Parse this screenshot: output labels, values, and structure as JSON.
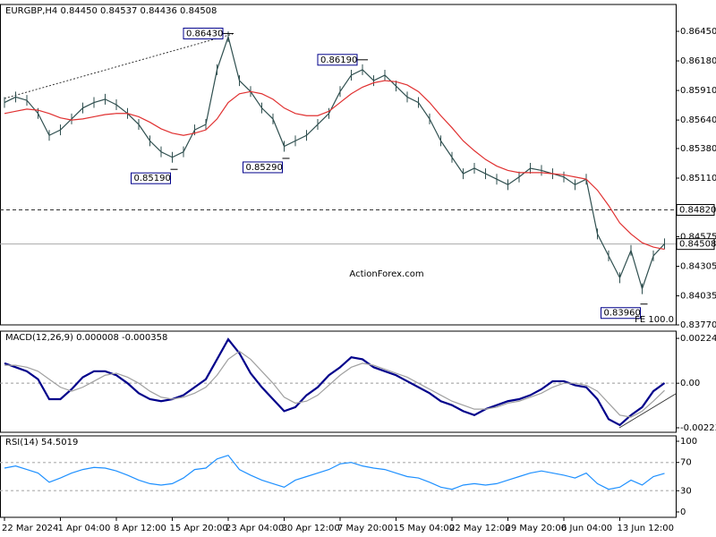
{
  "chart_data": [
    {
      "type": "line",
      "title": "EURGBP,H4  0.84450 0.84537 0.84436 0.84508",
      "watermark": "ActionForex.com",
      "categories": [
        "22 Mar 2024",
        null,
        null,
        null,
        null,
        "1 Apr 04:00",
        null,
        null,
        null,
        null,
        "8 Apr 12:00",
        null,
        null,
        null,
        null,
        "15 Apr 20:00",
        null,
        null,
        null,
        null,
        "23 Apr 04:00",
        null,
        null,
        null,
        null,
        "30 Apr 12:00",
        null,
        null,
        null,
        null,
        "7 May 20:00",
        null,
        null,
        null,
        null,
        "15 May 04:00",
        null,
        null,
        null,
        null,
        "22 May 12:00",
        null,
        null,
        null,
        null,
        "29 May 20:00",
        null,
        null,
        null,
        null,
        "6 Jun 04:00",
        null,
        null,
        null,
        null,
        "13 Jun 12:00",
        null,
        null,
        null,
        null
      ],
      "series": [
        {
          "name": "EURGBP",
          "color": "#2f4f4f",
          "values": [
            0.858,
            0.8585,
            0.8582,
            0.857,
            0.855,
            0.8555,
            0.8565,
            0.8575,
            0.858,
            0.8583,
            0.8578,
            0.857,
            0.856,
            0.8545,
            0.8535,
            0.853,
            0.8535,
            0.8555,
            0.856,
            0.861,
            0.864,
            0.86,
            0.859,
            0.8575,
            0.8565,
            0.854,
            0.8545,
            0.855,
            0.856,
            0.857,
            0.859,
            0.8605,
            0.861,
            0.86,
            0.8605,
            0.8595,
            0.8585,
            0.858,
            0.8565,
            0.8545,
            0.853,
            0.8515,
            0.852,
            0.8515,
            0.851,
            0.8505,
            0.8512,
            0.852,
            0.8518,
            0.8515,
            0.8512,
            0.8505,
            0.851,
            0.846,
            0.844,
            0.842,
            0.8445,
            0.841,
            0.844,
            0.8451
          ]
        },
        {
          "name": "MA",
          "color": "#e03030",
          "values": [
            0.857,
            0.8572,
            0.8574,
            0.8573,
            0.857,
            0.8566,
            0.8564,
            0.8565,
            0.8567,
            0.8569,
            0.857,
            0.857,
            0.8567,
            0.8562,
            0.8556,
            0.8552,
            0.855,
            0.8552,
            0.8555,
            0.8565,
            0.858,
            0.8588,
            0.859,
            0.8588,
            0.8583,
            0.8575,
            0.857,
            0.8568,
            0.8568,
            0.8572,
            0.858,
            0.8588,
            0.8594,
            0.8598,
            0.86,
            0.8599,
            0.8596,
            0.859,
            0.858,
            0.8568,
            0.8557,
            0.8545,
            0.8536,
            0.8528,
            0.8522,
            0.8518,
            0.8516,
            0.8516,
            0.8516,
            0.8515,
            0.8514,
            0.8512,
            0.851,
            0.85,
            0.8486,
            0.847,
            0.846,
            0.8452,
            0.8448,
            0.8446
          ]
        }
      ],
      "ylim": [
        0.8377,
        0.86695
      ],
      "yticks": [
        {
          "value": 0.8645,
          "label": "0.86450"
        },
        {
          "value": 0.8618,
          "label": "0.86180"
        },
        {
          "value": 0.8591,
          "label": "0.85910"
        },
        {
          "value": 0.8564,
          "label": "0.85640"
        },
        {
          "value": 0.8538,
          "label": "0.85380"
        },
        {
          "value": 0.8511,
          "label": "0.85110"
        },
        {
          "value": 0.84575,
          "label": "0.84575"
        },
        {
          "value": 0.84305,
          "label": "0.84305"
        },
        {
          "value": 0.84035,
          "label": "0.84035"
        },
        {
          "value": 0.8377,
          "label": "0.83770"
        }
      ],
      "levels": [
        {
          "value": 0.8482,
          "label": "0.84820",
          "style": "dashed"
        },
        {
          "value": 0.84508,
          "label": "0.84508",
          "style": "solid"
        }
      ],
      "annotations": [
        {
          "value": 0.8643,
          "label": "0.86430",
          "index": 20
        },
        {
          "value": 0.8619,
          "label": "0.86190",
          "index": 32
        },
        {
          "value": 0.8519,
          "label": "0.85190",
          "index": 15
        },
        {
          "value": 0.8529,
          "label": "0.85290",
          "index": 25
        },
        {
          "value": 0.8396,
          "label": "0.83960",
          "index": 57
        }
      ],
      "note": "FE 100.0"
    },
    {
      "type": "line",
      "title": "MACD(12,26,9) 0.000008 -0.000358",
      "series": [
        {
          "name": "MACD",
          "color": "#00008b",
          "values": [
            0.001,
            0.0008,
            0.0006,
            0.0002,
            -0.0008,
            -0.0008,
            -0.0003,
            0.0003,
            0.0006,
            0.0006,
            0.0004,
            0,
            -0.0005,
            -0.0008,
            -0.0009,
            -0.0008,
            -0.0006,
            -0.0002,
            0.0002,
            0.0012,
            0.0022,
            0.0015,
            0.0005,
            -0.0002,
            -0.0008,
            -0.0014,
            -0.0012,
            -0.0006,
            -0.0002,
            0.0004,
            0.0008,
            0.0013,
            0.0012,
            0.0008,
            0.0006,
            0.0004,
            0.0001,
            -0.0002,
            -0.0005,
            -0.0009,
            -0.0011,
            -0.0014,
            -0.0016,
            -0.0013,
            -0.0011,
            -0.0009,
            -0.0008,
            -0.0006,
            -0.0003,
            0.0001,
            0.0001,
            -0.0001,
            -0.0002,
            -0.0008,
            -0.0018,
            -0.0021,
            -0.0016,
            -0.0012,
            -0.0004,
            8e-06
          ]
        },
        {
          "name": "Signal",
          "color": "#a0a0a0",
          "values": [
            0.0009,
            0.0009,
            0.0008,
            0.0006,
            0.0002,
            -0.0002,
            -0.0004,
            -0.0002,
            0.0001,
            0.0004,
            0.0005,
            0.0003,
            0,
            -0.0004,
            -0.0007,
            -0.0008,
            -0.0007,
            -0.0005,
            -0.0002,
            0.0004,
            0.0012,
            0.0016,
            0.0012,
            0.0006,
            0,
            -0.0007,
            -0.001,
            -0.0009,
            -0.0006,
            -0.0001,
            0.0004,
            0.0008,
            0.001,
            0.0009,
            0.0007,
            0.0005,
            0.0003,
            0,
            -0.0003,
            -0.0006,
            -0.0009,
            -0.0011,
            -0.0013,
            -0.0013,
            -0.0012,
            -0.001,
            -0.0009,
            -0.0007,
            -0.0005,
            -0.0002,
            0,
            0,
            -0.0001,
            -0.0004,
            -0.001,
            -0.0016,
            -0.0017,
            -0.0014,
            -0.0009,
            -0.000358
          ]
        }
      ],
      "ylim": [
        -0.00246,
        0.00261
      ],
      "yticks": [
        0.002248,
        {
          "value": 0,
          "label": "0.00"
        },
        -0.002236
      ]
    },
    {
      "type": "line",
      "title": "RSI(14) 54.5019",
      "series": [
        {
          "name": "RSI",
          "color": "#1e90ff",
          "values": [
            62,
            65,
            60,
            55,
            42,
            48,
            55,
            60,
            63,
            62,
            58,
            52,
            45,
            40,
            38,
            40,
            48,
            60,
            62,
            75,
            80,
            60,
            52,
            45,
            40,
            35,
            45,
            50,
            55,
            60,
            68,
            70,
            65,
            62,
            60,
            55,
            50,
            48,
            42,
            35,
            32,
            38,
            40,
            38,
            40,
            45,
            50,
            55,
            58,
            55,
            52,
            48,
            55,
            40,
            32,
            35,
            45,
            38,
            50,
            54.5019
          ]
        }
      ],
      "ylim": [
        -7.6,
        107.6
      ],
      "yticks": [
        100,
        70,
        30,
        0
      ]
    }
  ]
}
